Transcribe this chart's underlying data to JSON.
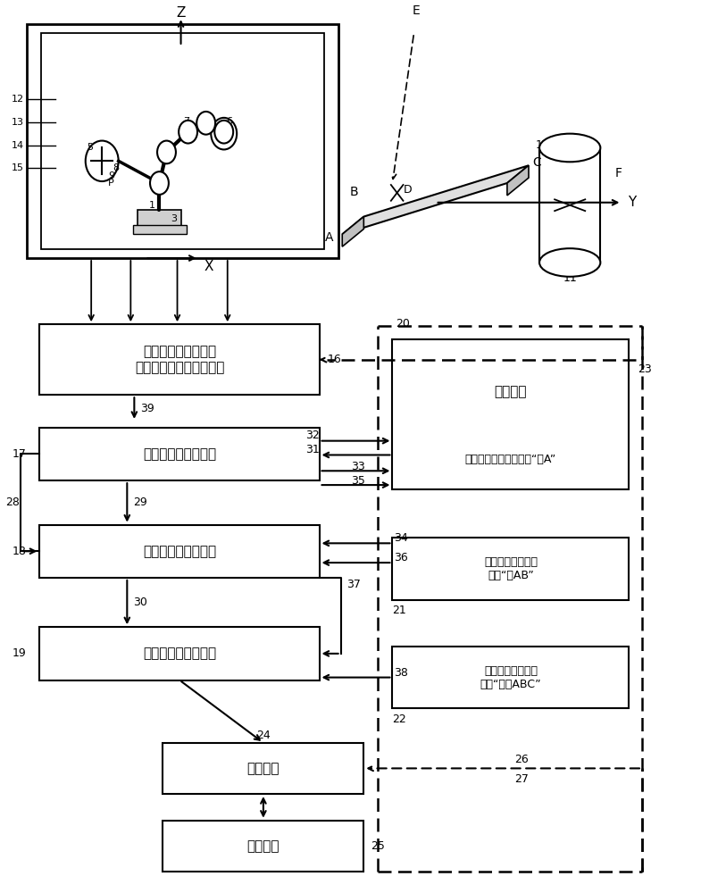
{
  "bg_color": "#ffffff",
  "line_color": "#000000",
  "font_size": 11,
  "small_font": 9,
  "box16_text": "机器人坐标到在周围\n环境中使用的坐标的转换",
  "box17_text": "低级几何特征的定义",
  "box18_text": "中级几何特征的定义",
  "box19_text": "高级几何特征的定义",
  "box20_text": "对特征进行命名、例如“点A”",
  "box21_text": "对特征进行命名，\n例如“线AB”",
  "box22_text": "对特征进行命名，\n例如“平面ABC”",
  "box23_text": "存储装置",
  "box24_text": "控制系统",
  "box25_text": "用户接口"
}
